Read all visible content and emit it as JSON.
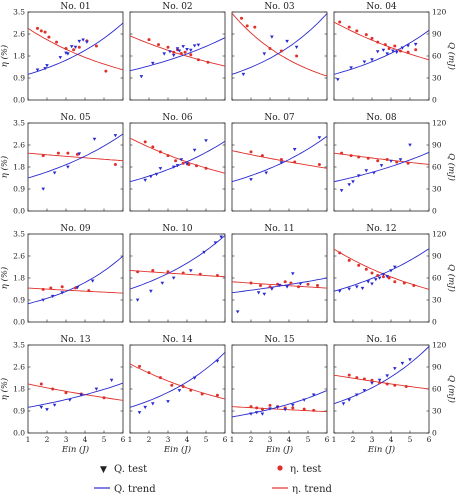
{
  "figure": {
    "left_ylabel": "η (%)",
    "right_ylabel": "Q (mJ)",
    "xlabel": "Ein (J)",
    "legend": {
      "q_test": "Q. test",
      "eta_test": "η. test",
      "q_trend": "Q. trend",
      "eta_trend": "η. trend"
    },
    "colors": {
      "q": "#2a2ad0",
      "eta": "#e0302a",
      "frame": "#222222"
    },
    "left_ticks": [
      "0.0",
      "0.9",
      "1.8",
      "2.6",
      "3.5"
    ],
    "right_ticks": [
      "0",
      "30",
      "60",
      "90",
      "120"
    ],
    "x_ticks": [
      "1",
      "2",
      "3",
      "4",
      "5",
      "6"
    ]
  },
  "chart_data": [
    {
      "type": "scatter",
      "title": "No. 01",
      "xlim": [
        1,
        6
      ],
      "ylim": [
        0,
        3.5
      ],
      "y2lim": [
        0,
        120
      ],
      "q_test": {
        "x": [
          1.5,
          1.9,
          2.0,
          2.7,
          3.0,
          3.1,
          3.3,
          3.5,
          3.7,
          3.9,
          4.1
        ],
        "y": [
          41,
          43,
          47,
          58,
          64,
          63,
          73,
          72,
          80,
          82,
          79
        ]
      },
      "eta_test": {
        "x": [
          1.5,
          1.7,
          1.9,
          2.1,
          2.5,
          3.0,
          3.4,
          3.7,
          4.1,
          4.6,
          5.1
        ],
        "y": [
          2.85,
          2.75,
          2.7,
          2.5,
          2.3,
          2.05,
          2.0,
          2.1,
          2.35,
          2.15,
          1.15
        ]
      },
      "q_trend": [
        [
          1,
          35
        ],
        [
          6,
          105
        ]
      ],
      "eta_trend": [
        [
          1,
          2.85
        ],
        [
          6,
          1.2
        ]
      ]
    },
    {
      "type": "scatter",
      "title": "No. 02",
      "xlim": [
        1,
        6
      ],
      "ylim": [
        0,
        3.5
      ],
      "y2lim": [
        0,
        120
      ],
      "q_test": {
        "x": [
          1.6,
          2.2,
          2.8,
          3.1,
          3.3,
          3.5,
          3.6,
          3.8,
          4.0,
          4.2,
          4.4,
          4.6
        ],
        "y": [
          32,
          50,
          63,
          66,
          61,
          70,
          67,
          73,
          69,
          68,
          74,
          75
        ]
      },
      "eta_test": {
        "x": [
          2.0,
          2.5,
          3.0,
          3.3,
          3.5,
          3.7,
          3.9,
          4.2,
          4.6,
          5.1
        ],
        "y": [
          2.4,
          2.2,
          2.1,
          1.9,
          2.0,
          1.85,
          1.9,
          1.8,
          1.6,
          1.5
        ]
      },
      "q_trend": [
        [
          1,
          40
        ],
        [
          6,
          85
        ]
      ],
      "eta_trend": [
        [
          1,
          2.55
        ],
        [
          6,
          1.35
        ]
      ]
    },
    {
      "type": "scatter",
      "title": "No. 03",
      "xlim": [
        1,
        6
      ],
      "ylim": [
        0,
        3.5
      ],
      "y2lim": [
        0,
        120
      ],
      "q_test": {
        "x": [
          1.6,
          2.7,
          3.1,
          3.9,
          4.4
        ],
        "y": [
          35,
          63,
          86,
          80,
          72
        ]
      },
      "eta_test": {
        "x": [
          1.5,
          1.8,
          2.2,
          3.0,
          3.6,
          4.4
        ],
        "y": [
          3.25,
          2.95,
          2.9,
          2.05,
          1.95,
          1.75
        ]
      },
      "q_trend": [
        [
          1,
          35
        ],
        [
          6,
          118
        ]
      ],
      "eta_trend": [
        [
          1,
          3.45
        ],
        [
          6,
          0.95
        ]
      ]
    },
    {
      "type": "scatter",
      "title": "No. 04",
      "xlim": [
        1,
        6
      ],
      "ylim": [
        0,
        3.5
      ],
      "y2lim": [
        0,
        120
      ],
      "q_test": {
        "x": [
          1.2,
          1.9,
          2.6,
          3.0,
          3.3,
          3.6,
          3.8,
          4.1,
          4.3,
          4.6,
          4.9,
          5.3
        ],
        "y": [
          28,
          44,
          52,
          55,
          66,
          68,
          63,
          67,
          65,
          71,
          74,
          76
        ]
      },
      "eta_test": {
        "x": [
          1.3,
          1.8,
          2.2,
          2.7,
          3.0,
          3.3,
          3.7,
          3.9,
          4.2,
          4.5,
          4.9,
          5.3
        ],
        "y": [
          3.1,
          2.9,
          2.75,
          2.6,
          2.45,
          2.3,
          2.2,
          2.05,
          2.15,
          1.95,
          1.9,
          2.0
        ]
      },
      "q_trend": [
        [
          1,
          35
        ],
        [
          6,
          95
        ]
      ],
      "eta_trend": [
        [
          1,
          3.1
        ],
        [
          6,
          1.6
        ]
      ]
    },
    {
      "type": "scatter",
      "title": "No. 05",
      "xlim": [
        1,
        6
      ],
      "ylim": [
        0,
        3.5
      ],
      "y2lim": [
        0,
        120
      ],
      "q_test": {
        "x": [
          1.8,
          2.4,
          3.1,
          3.7,
          4.5,
          5.6
        ],
        "y": [
          30,
          52,
          60,
          78,
          98,
          103
        ]
      },
      "eta_test": {
        "x": [
          1.8,
          2.6,
          3.1,
          3.6,
          5.6
        ],
        "y": [
          2.2,
          2.3,
          2.3,
          2.25,
          1.85
        ]
      },
      "q_trend": [
        [
          1,
          45
        ],
        [
          6,
          105
        ]
      ],
      "eta_trend": [
        [
          1,
          2.3
        ],
        [
          6,
          2.0
        ]
      ]
    },
    {
      "type": "scatter",
      "title": "No. 06",
      "xlim": [
        1,
        6
      ],
      "ylim": [
        0,
        3.5
      ],
      "y2lim": [
        0,
        120
      ],
      "q_test": {
        "x": [
          1.8,
          2.1,
          2.4,
          2.6,
          3.3,
          3.5,
          3.7,
          4.0,
          4.4,
          5.0
        ],
        "y": [
          42,
          47,
          50,
          58,
          60,
          62,
          70,
          64,
          83,
          96
        ]
      },
      "eta_test": {
        "x": [
          1.8,
          2.2,
          2.6,
          3.0,
          3.4,
          3.8,
          4.1,
          4.5,
          5.0
        ],
        "y": [
          2.75,
          2.55,
          2.35,
          2.2,
          2.0,
          1.9,
          1.85,
          1.8,
          1.7
        ]
      },
      "q_trend": [
        [
          1,
          40
        ],
        [
          6,
          95
        ]
      ],
      "eta_trend": [
        [
          1,
          2.9
        ],
        [
          6,
          1.5
        ]
      ]
    },
    {
      "type": "scatter",
      "title": "No. 07",
      "xlim": [
        1,
        6
      ],
      "ylim": [
        0,
        3.5
      ],
      "y2lim": [
        0,
        120
      ],
      "q_test": {
        "x": [
          2.0,
          2.8,
          3.6,
          4.3,
          5.6
        ],
        "y": [
          43,
          52,
          66,
          84,
          100
        ]
      },
      "eta_test": {
        "x": [
          2.0,
          2.6,
          3.6,
          4.3,
          5.6
        ],
        "y": [
          2.35,
          2.2,
          2.05,
          1.95,
          1.85
        ]
      },
      "q_trend": [
        [
          1,
          40
        ],
        [
          6,
          102
        ]
      ],
      "eta_trend": [
        [
          1,
          2.4
        ],
        [
          6,
          1.7
        ]
      ]
    },
    {
      "type": "scatter",
      "title": "No. 08",
      "xlim": [
        1,
        6
      ],
      "ylim": [
        0,
        3.5
      ],
      "y2lim": [
        0,
        120
      ],
      "q_test": {
        "x": [
          1.4,
          1.8,
          2.0,
          2.3,
          2.7,
          3.1,
          3.5,
          4.0,
          4.5,
          5.0
        ],
        "y": [
          28,
          36,
          40,
          48,
          55,
          52,
          62,
          68,
          70,
          90
        ]
      },
      "eta_test": {
        "x": [
          1.4,
          1.9,
          2.3,
          2.8,
          3.3,
          3.8,
          4.3,
          4.9
        ],
        "y": [
          2.3,
          2.2,
          2.15,
          2.1,
          2.0,
          2.05,
          1.95,
          1.9
        ]
      },
      "q_trend": [
        [
          1,
          40
        ],
        [
          6,
          80
        ]
      ],
      "eta_trend": [
        [
          1,
          2.3
        ],
        [
          6,
          1.85
        ]
      ]
    },
    {
      "type": "scatter",
      "title": "No. 09",
      "xlim": [
        1,
        6
      ],
      "ylim": [
        0,
        3.5
      ],
      "y2lim": [
        0,
        120
      ],
      "q_test": {
        "x": [
          1.8,
          2.3,
          2.8,
          3.6,
          4.4
        ],
        "y": [
          30,
          35,
          40,
          47,
          56
        ]
      },
      "eta_test": {
        "x": [
          1.8,
          2.2,
          2.8,
          3.5,
          4.2
        ],
        "y": [
          1.3,
          1.35,
          1.4,
          1.35,
          1.25
        ]
      },
      "q_trend": [
        [
          1,
          25
        ],
        [
          6,
          90
        ]
      ],
      "eta_trend": [
        [
          1,
          1.35
        ],
        [
          6,
          1.15
        ]
      ]
    },
    {
      "type": "scatter",
      "title": "No. 10",
      "xlim": [
        1,
        6
      ],
      "ylim": [
        0,
        3.5
      ],
      "y2lim": [
        0,
        120
      ],
      "q_test": {
        "x": [
          1.4,
          2.1,
          2.7,
          3.3,
          4.2,
          4.9,
          5.5,
          5.8
        ],
        "y": [
          30,
          42,
          53,
          60,
          70,
          95,
          108,
          116
        ]
      },
      "eta_test": {
        "x": [
          1.4,
          2.2,
          3.0,
          3.8,
          4.7,
          5.6
        ],
        "y": [
          2.0,
          2.05,
          2.0,
          1.95,
          1.9,
          1.85
        ]
      },
      "q_trend": [
        [
          1,
          45
        ],
        [
          6,
          118
        ]
      ],
      "eta_trend": [
        [
          1,
          2.05
        ],
        [
          6,
          1.8
        ]
      ]
    },
    {
      "type": "scatter",
      "title": "No. 11",
      "xlim": [
        1,
        6
      ],
      "ylim": [
        0,
        3.5
      ],
      "y2lim": [
        0,
        120
      ],
      "q_test": {
        "x": [
          1.3,
          2.4,
          2.7,
          3.1,
          3.5,
          3.9,
          4.2,
          4.6
        ],
        "y": [
          14,
          40,
          38,
          45,
          50,
          48,
          66,
          52
        ]
      },
      "eta_test": {
        "x": [
          2.0,
          2.5,
          3.0,
          3.4,
          3.8,
          4.1,
          4.5,
          5.0,
          5.5
        ],
        "y": [
          1.55,
          1.45,
          1.4,
          1.5,
          1.6,
          1.55,
          1.4,
          1.5,
          1.45
        ]
      },
      "q_trend": [
        [
          1,
          40
        ],
        [
          6,
          60
        ]
      ],
      "eta_trend": [
        [
          1,
          1.6
        ],
        [
          6,
          1.35
        ]
      ]
    },
    {
      "type": "scatter",
      "title": "No. 12",
      "xlim": [
        1,
        6
      ],
      "ylim": [
        0,
        3.5
      ],
      "y2lim": [
        0,
        120
      ],
      "q_test": {
        "x": [
          1.3,
          1.8,
          2.2,
          2.5,
          2.8,
          3.0,
          3.2,
          3.4,
          3.6,
          3.8,
          4.0,
          4.2
        ],
        "y": [
          42,
          45,
          48,
          46,
          55,
          52,
          58,
          60,
          65,
          62,
          70,
          75
        ]
      },
      "eta_test": {
        "x": [
          1.3,
          1.8,
          2.3,
          2.7,
          3.0,
          3.3,
          3.6,
          3.9,
          4.2,
          4.7,
          5.2
        ],
        "y": [
          2.75,
          2.45,
          2.25,
          2.1,
          1.95,
          1.85,
          1.8,
          1.75,
          1.6,
          1.55,
          1.45
        ]
      },
      "q_trend": [
        [
          1,
          42
        ],
        [
          6,
          100
        ]
      ],
      "eta_trend": [
        [
          1,
          2.9
        ],
        [
          6,
          1.3
        ]
      ]
    },
    {
      "type": "scatter",
      "title": "No. 13",
      "xlim": [
        1,
        6
      ],
      "ylim": [
        0,
        3.5
      ],
      "y2lim": [
        0,
        120
      ],
      "q_test": {
        "x": [
          1.7,
          2.0,
          2.4,
          3.2,
          3.8,
          4.6,
          5.4
        ],
        "y": [
          35,
          32,
          38,
          45,
          52,
          60,
          72
        ]
      },
      "eta_test": {
        "x": [
          1.7,
          2.3,
          3.0,
          3.8,
          5.0
        ],
        "y": [
          1.95,
          1.75,
          1.6,
          1.55,
          1.4
        ]
      },
      "q_trend": [
        [
          1,
          35
        ],
        [
          6,
          68
        ]
      ],
      "eta_trend": [
        [
          1,
          1.95
        ],
        [
          6,
          1.3
        ]
      ]
    },
    {
      "type": "scatter",
      "title": "No. 14",
      "xlim": [
        1,
        6
      ],
      "ylim": [
        0,
        3.5
      ],
      "y2lim": [
        0,
        120
      ],
      "q_test": {
        "x": [
          1.5,
          1.8,
          2.2,
          3.0,
          3.6,
          4.4,
          5.6
        ],
        "y": [
          28,
          35,
          40,
          43,
          58,
          75,
          98
        ]
      },
      "eta_test": {
        "x": [
          1.5,
          2.0,
          2.6,
          3.2,
          3.8,
          4.2,
          4.8,
          5.6
        ],
        "y": [
          2.65,
          2.4,
          2.2,
          1.9,
          1.85,
          1.7,
          1.55,
          1.5
        ]
      },
      "q_trend": [
        [
          1,
          35
        ],
        [
          6,
          110
        ]
      ],
      "eta_trend": [
        [
          1,
          2.75
        ],
        [
          6,
          1.35
        ]
      ]
    },
    {
      "type": "scatter",
      "title": "No. 15",
      "xlim": [
        1,
        6
      ],
      "ylim": [
        0,
        3.5
      ],
      "y2lim": [
        0,
        120
      ],
      "q_test": {
        "x": [
          2.0,
          2.3,
          2.6,
          3.0,
          3.4,
          3.8,
          4.2,
          4.8,
          5.3
        ],
        "y": [
          26,
          28,
          26,
          33,
          35,
          32,
          38,
          45,
          52
        ]
      },
      "eta_test": {
        "x": [
          2.0,
          2.3,
          2.6,
          3.0,
          3.4,
          3.8,
          4.2,
          4.8,
          5.3
        ],
        "y": [
          1.05,
          1.0,
          0.95,
          1.1,
          1.05,
          1.0,
          1.0,
          0.95,
          0.9
        ]
      },
      "q_trend": [
        [
          1,
          22
        ],
        [
          6,
          58
        ]
      ],
      "eta_trend": [
        [
          1,
          1.05
        ],
        [
          6,
          0.85
        ]
      ]
    },
    {
      "type": "scatter",
      "title": "No. 16",
      "xlim": [
        1,
        6
      ],
      "ylim": [
        0,
        3.5
      ],
      "y2lim": [
        0,
        120
      ],
      "q_test": {
        "x": [
          1.5,
          1.8,
          2.2,
          2.6,
          3.0,
          3.4,
          3.8,
          4.2,
          4.6,
          5.0
        ],
        "y": [
          40,
          45,
          52,
          58,
          68,
          72,
          78,
          88,
          95,
          100
        ]
      },
      "eta_test": {
        "x": [
          1.8,
          2.2,
          2.6,
          3.0,
          3.4,
          3.8,
          4.2,
          4.8
        ],
        "y": [
          2.3,
          2.2,
          2.15,
          2.1,
          2.0,
          1.95,
          1.9,
          1.85
        ]
      },
      "q_trend": [
        [
          1,
          40
        ],
        [
          6,
          118
        ]
      ],
      "eta_trend": [
        [
          1,
          2.3
        ],
        [
          6,
          1.75
        ]
      ]
    }
  ]
}
